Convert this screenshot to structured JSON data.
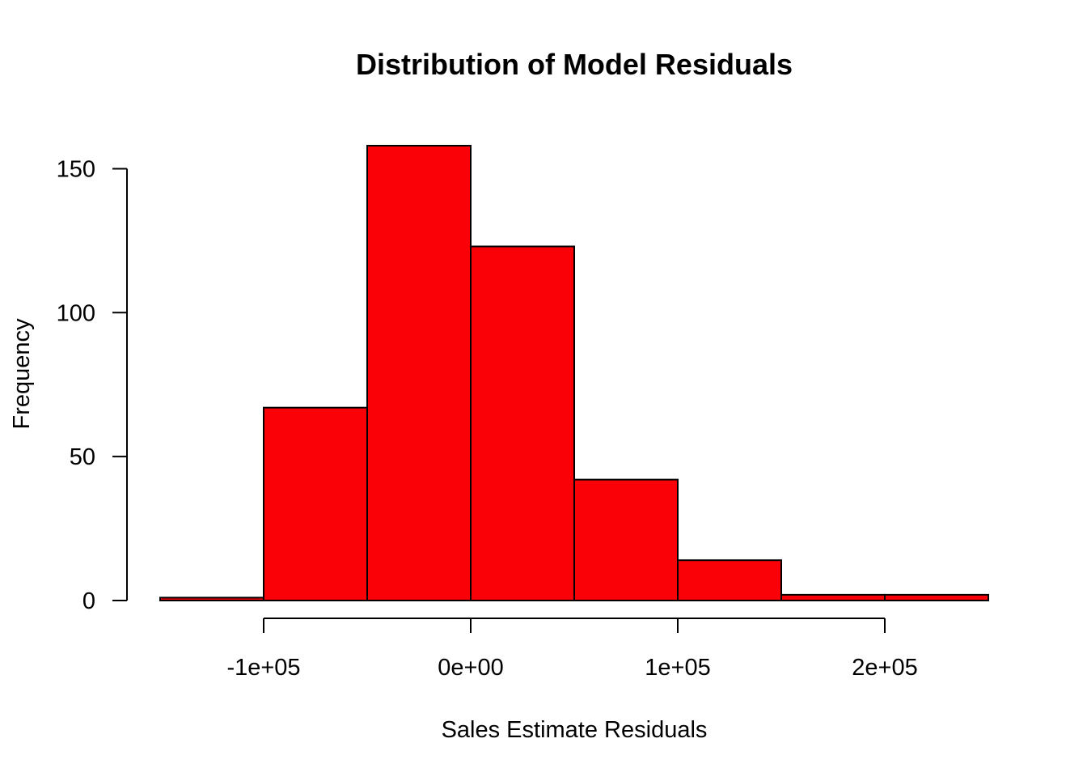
{
  "chart_data": {
    "type": "bar",
    "title": "Distribution of Model Residuals",
    "xlabel": "Sales Estimate Residuals",
    "ylabel": "Frequency",
    "bin_edges": [
      -150000,
      -100000,
      -50000,
      0,
      50000,
      100000,
      150000,
      200000,
      250000
    ],
    "values": [
      1,
      67,
      158,
      123,
      42,
      14,
      2,
      2
    ],
    "xlim": [
      -150000,
      250000
    ],
    "ylim": [
      0,
      158
    ],
    "x_ticks": [
      {
        "value": -100000,
        "label": "-1e+05"
      },
      {
        "value": 0,
        "label": "0e+00"
      },
      {
        "value": 100000,
        "label": "1e+05"
      },
      {
        "value": 200000,
        "label": "2e+05"
      }
    ],
    "y_ticks": [
      {
        "value": 0,
        "label": "0"
      },
      {
        "value": 50,
        "label": "50"
      },
      {
        "value": 100,
        "label": "100"
      },
      {
        "value": 150,
        "label": "150"
      }
    ],
    "bar_color": "#fa0007",
    "edge_color": "#000000",
    "grid": false,
    "legend": "none"
  }
}
